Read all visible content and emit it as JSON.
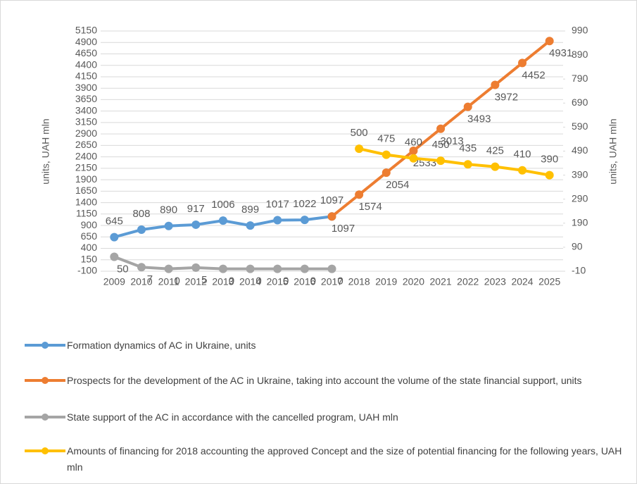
{
  "chart_data": {
    "type": "line",
    "y_label": "units, UAH mln",
    "y2_label": "units, UAH mln",
    "categories": [
      "2009",
      "2010",
      "2011",
      "2012",
      "2013",
      "2014",
      "2015",
      "2016",
      "2017",
      "2018",
      "2019",
      "2020",
      "2021",
      "2022",
      "2023",
      "2024",
      "2025"
    ],
    "ylim": [
      -100,
      5150
    ],
    "yticks": [
      -100,
      150,
      400,
      650,
      900,
      1150,
      1400,
      1650,
      1900,
      2150,
      2400,
      2650,
      2900,
      3150,
      3400,
      3650,
      3900,
      4150,
      4400,
      4650,
      4900,
      5150
    ],
    "y2lim": [
      -10,
      990
    ],
    "y2ticks": [
      -10,
      90,
      190,
      290,
      390,
      490,
      590,
      690,
      790,
      890,
      990
    ],
    "grid": true,
    "series": [
      {
        "name": "Formation dynamics of AC in Ukraine, units",
        "color": "#5b9bd5",
        "values": [
          645,
          808,
          890,
          917,
          1006,
          899,
          1017,
          1022,
          1097,
          null,
          null,
          null,
          null,
          null,
          null,
          null,
          null
        ]
      },
      {
        "name": "Prospects  for the development of the AC in Ukraine, taking into account the volume of the state financial support, units",
        "color": "#ed7d31",
        "values": [
          null,
          null,
          null,
          null,
          null,
          null,
          null,
          null,
          1097,
          1574,
          2054,
          2533,
          3013,
          3493,
          3972,
          4452,
          4931
        ]
      },
      {
        "name": "State support of the AC in accordance with the cancelled program, UAH mln",
        "color": "#a5a5a5",
        "axis": "y2",
        "values": [
          50,
          7,
          0,
          5,
          0,
          0,
          0,
          0,
          0,
          null,
          null,
          null,
          null,
          null,
          null,
          null,
          null
        ]
      },
      {
        "name": "Amounts of financing for 2018 accounting the approved Concept and the size of potential financing for the following years, UAH mln",
        "color": "#ffc000",
        "axis": "y2",
        "values": [
          null,
          null,
          null,
          null,
          null,
          null,
          null,
          null,
          null,
          500,
          475,
          460,
          450,
          435,
          425,
          410,
          390
        ]
      }
    ]
  }
}
